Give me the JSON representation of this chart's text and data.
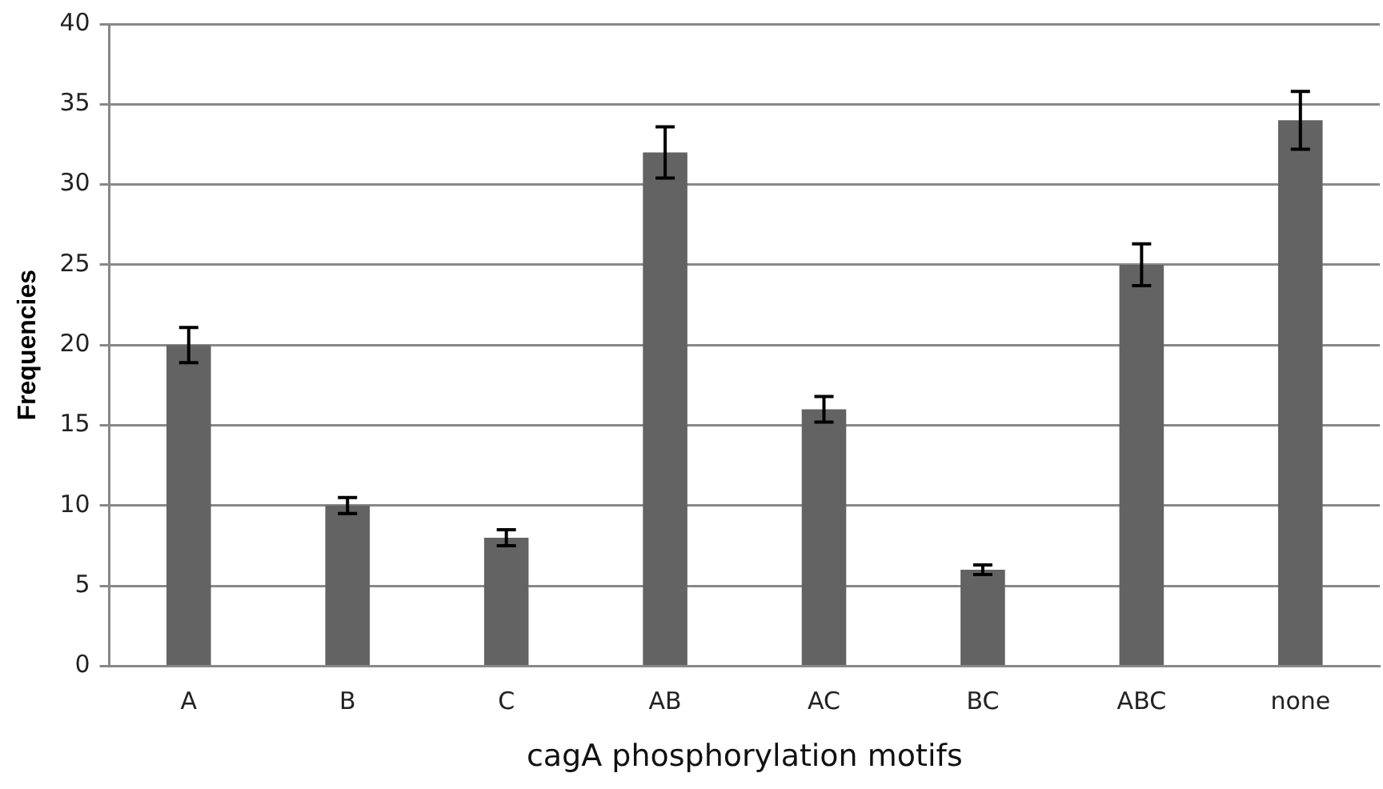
{
  "chart_data": {
    "type": "bar",
    "xlabel": "cagA phosphorylation motifs",
    "ylabel": "Frequencies",
    "categories": [
      "A",
      "B",
      "C",
      "AB",
      "AC",
      "BC",
      "ABC",
      "none"
    ],
    "values": [
      20,
      10,
      8,
      32,
      16,
      6,
      25,
      34
    ],
    "errors": [
      1.1,
      0.5,
      0.5,
      1.6,
      0.8,
      0.3,
      1.3,
      1.8
    ],
    "color": "#636363",
    "ylim": [
      0,
      40
    ],
    "yticks": [
      0,
      5,
      10,
      15,
      20,
      25,
      30,
      35,
      40
    ],
    "grid": "y",
    "legend": false
  }
}
